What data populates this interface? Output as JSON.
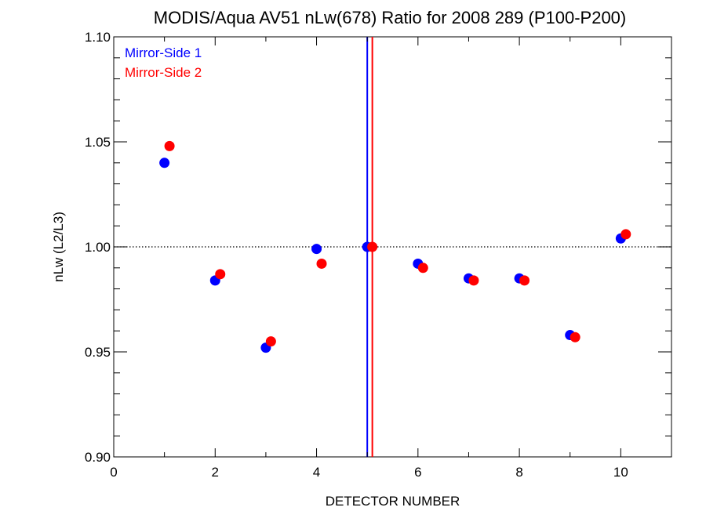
{
  "chart_data": {
    "type": "scatter",
    "title": "MODIS/Aqua AV51 nLw(678) Ratio for 2008 289 (P100-P200)",
    "xlabel": "DETECTOR NUMBER",
    "ylabel": "nLw (L2/L3)",
    "xlim": [
      0,
      11
    ],
    "ylim": [
      0.9,
      1.1
    ],
    "x_ticks": [
      0,
      2,
      4,
      6,
      8,
      10
    ],
    "x_tick_labels": [
      "0",
      "2",
      "4",
      "6",
      "8",
      "10"
    ],
    "y_ticks": [
      0.9,
      0.95,
      1.0,
      1.05,
      1.1
    ],
    "y_tick_labels": [
      "0.90",
      "0.95",
      "1.00",
      "1.05",
      "1.10"
    ],
    "reference_line_y": 1.0,
    "legend_position": "top-left",
    "grid": false,
    "series": [
      {
        "name": "Mirror-Side 1",
        "color": "#0000ff",
        "x": [
          1,
          2,
          3,
          4,
          5,
          6,
          7,
          8,
          9,
          10
        ],
        "y": [
          1.04,
          0.984,
          0.952,
          0.999,
          1.0,
          0.992,
          0.985,
          0.985,
          0.958,
          1.004
        ],
        "vertical_line_x": 5.0
      },
      {
        "name": "Mirror-Side 2",
        "color": "#ff0000",
        "x": [
          1.1,
          2.1,
          3.1,
          4.1,
          5.1,
          6.1,
          7.1,
          8.1,
          9.1,
          10.1
        ],
        "y": [
          1.048,
          0.987,
          0.955,
          0.992,
          1.0,
          0.99,
          0.984,
          0.984,
          0.957,
          1.006
        ],
        "vertical_line_x": 5.1
      }
    ]
  }
}
